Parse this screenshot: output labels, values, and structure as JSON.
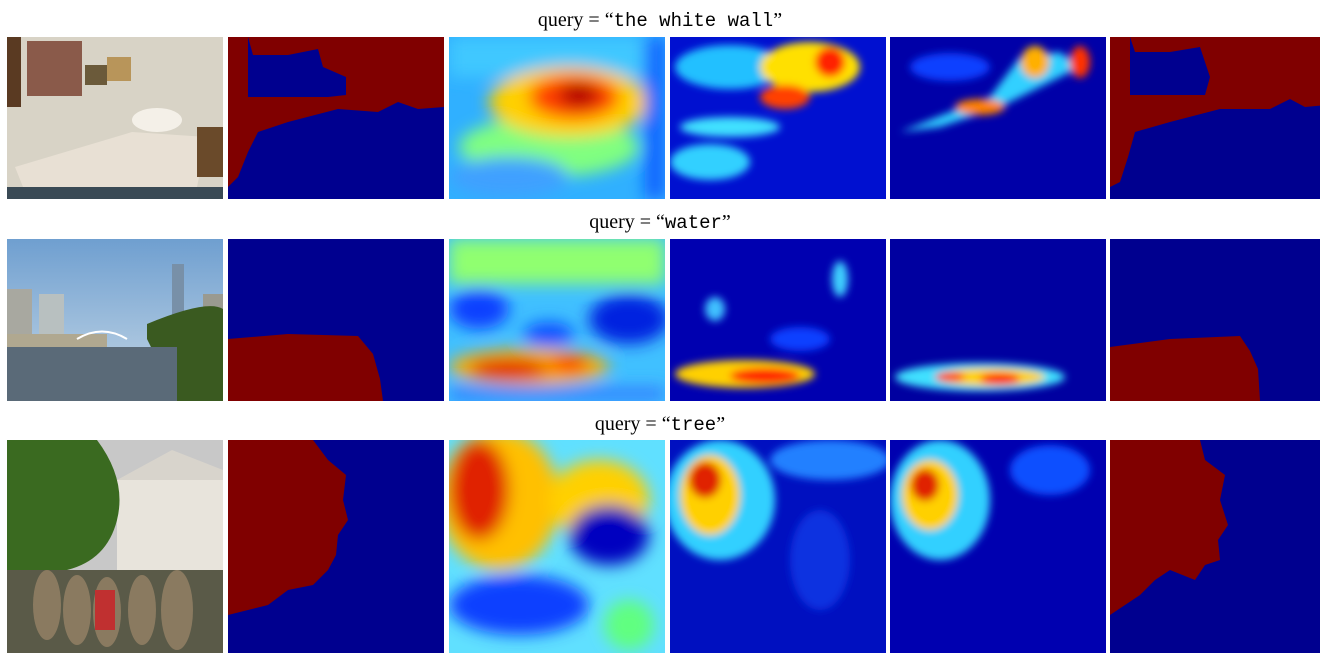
{
  "rows": [
    {
      "prefix": "query = “",
      "query": "the white wall",
      "suffix": "”"
    },
    {
      "prefix": "query = “",
      "query": "water",
      "suffix": "”"
    },
    {
      "prefix": "query = “",
      "query": "tree",
      "suffix": "”"
    }
  ]
}
